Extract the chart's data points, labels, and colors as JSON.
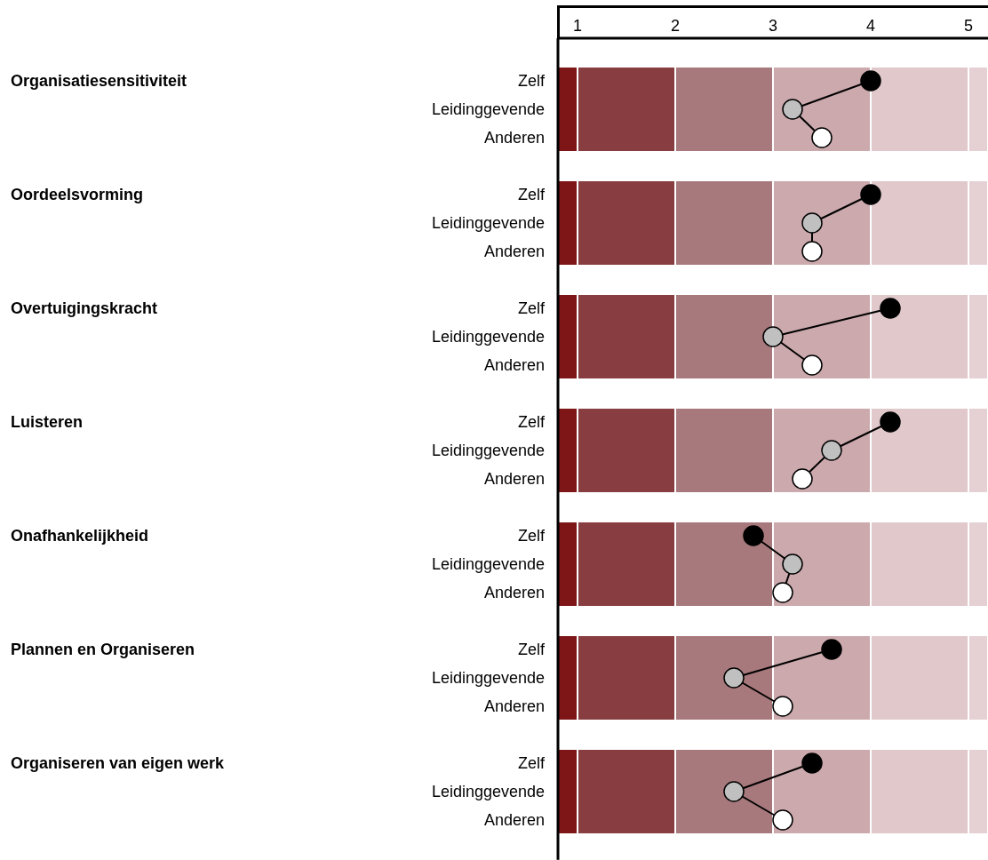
{
  "chart_data": [
    {
      "type": "line",
      "orientation": "horizontal",
      "ylabel": "Organisatiesensitiviteit",
      "categories": [
        "Zelf",
        "Leidinggevende",
        "Anderen"
      ],
      "marker": "circle",
      "xlim": [
        0.8,
        5.2
      ],
      "xticks": [
        1,
        2,
        3,
        4,
        5
      ],
      "series": [
        {
          "color": "#000000",
          "colors": [
            "#000000",
            "#c0c0c0",
            "#ffffff"
          ],
          "values": [
            4.0,
            3.2,
            3.5
          ]
        }
      ],
      "bands": [
        {
          "axis": "x",
          "from": 0.8,
          "to": 1,
          "color": "#7e1618"
        },
        {
          "axis": "x",
          "from": 1,
          "to": 2,
          "color": "#883e40"
        },
        {
          "axis": "x",
          "from": 2,
          "to": 3,
          "color": "#a8797c"
        },
        {
          "axis": "x",
          "from": 3,
          "to": 4,
          "color": "#cca9ad"
        },
        {
          "axis": "x",
          "from": 4,
          "to": 5,
          "color": "#e0c8cb"
        },
        {
          "axis": "x",
          "from": 5,
          "to": 5.2,
          "color": "#e5d0d3"
        }
      ]
    },
    {
      "type": "line",
      "orientation": "horizontal",
      "ylabel": "Oordeelsvorming",
      "categories": [
        "Zelf",
        "Leidinggevende",
        "Anderen"
      ],
      "marker": "circle",
      "xlim": [
        0.8,
        5.2
      ],
      "xticks": [
        1,
        2,
        3,
        4,
        5
      ],
      "tick_labels": "y",
      "series": [
        {
          "color": "#000000",
          "colors": [
            "#000000",
            "#c0c0c0",
            "#ffffff"
          ],
          "values": [
            4.0,
            3.4,
            3.4
          ]
        }
      ],
      "bands": [
        {
          "axis": "x",
          "from": 0.8,
          "to": 1,
          "color": "#7e1618"
        },
        {
          "axis": "x",
          "from": 1,
          "to": 2,
          "color": "#883e40"
        },
        {
          "axis": "x",
          "from": 2,
          "to": 3,
          "color": "#a8797c"
        },
        {
          "axis": "x",
          "from": 3,
          "to": 4,
          "color": "#cca9ad"
        },
        {
          "axis": "x",
          "from": 4,
          "to": 5,
          "color": "#e0c8cb"
        },
        {
          "axis": "x",
          "from": 5,
          "to": 5.2,
          "color": "#e5d0d3"
        }
      ]
    },
    {
      "type": "line",
      "orientation": "horizontal",
      "ylabel": "Overtuigingskracht",
      "categories": [
        "Zelf",
        "Leidinggevende",
        "Anderen"
      ],
      "marker": "circle",
      "xlim": [
        0.8,
        5.2
      ],
      "xticks": [
        1,
        2,
        3,
        4,
        5
      ],
      "tick_labels": "y",
      "series": [
        {
          "color": "#000000",
          "colors": [
            "#000000",
            "#c0c0c0",
            "#ffffff"
          ],
          "values": [
            4.2,
            3.0,
            3.4
          ]
        }
      ],
      "bands": [
        {
          "axis": "x",
          "from": 0.8,
          "to": 1,
          "color": "#7e1618"
        },
        {
          "axis": "x",
          "from": 1,
          "to": 2,
          "color": "#883e40"
        },
        {
          "axis": "x",
          "from": 2,
          "to": 3,
          "color": "#a8797c"
        },
        {
          "axis": "x",
          "from": 3,
          "to": 4,
          "color": "#cca9ad"
        },
        {
          "axis": "x",
          "from": 4,
          "to": 5,
          "color": "#e0c8cb"
        },
        {
          "axis": "x",
          "from": 5,
          "to": 5.2,
          "color": "#e5d0d3"
        }
      ]
    },
    {
      "type": "line",
      "orientation": "horizontal",
      "ylabel": "Luisteren",
      "categories": [
        "Zelf",
        "Leidinggevende",
        "Anderen"
      ],
      "marker": "circle",
      "xlim": [
        0.8,
        5.2
      ],
      "xticks": [
        1,
        2,
        3,
        4,
        5
      ],
      "tick_labels": "y",
      "series": [
        {
          "color": "#000000",
          "colors": [
            "#000000",
            "#c0c0c0",
            "#ffffff"
          ],
          "values": [
            4.2,
            3.6,
            3.3
          ]
        }
      ],
      "bands": [
        {
          "axis": "x",
          "from": 0.8,
          "to": 1,
          "color": "#7e1618"
        },
        {
          "axis": "x",
          "from": 1,
          "to": 2,
          "color": "#883e40"
        },
        {
          "axis": "x",
          "from": 2,
          "to": 3,
          "color": "#a8797c"
        },
        {
          "axis": "x",
          "from": 3,
          "to": 4,
          "color": "#cca9ad"
        },
        {
          "axis": "x",
          "from": 4,
          "to": 5,
          "color": "#e0c8cb"
        },
        {
          "axis": "x",
          "from": 5,
          "to": 5.2,
          "color": "#e5d0d3"
        }
      ]
    },
    {
      "type": "line",
      "orientation": "horizontal",
      "ylabel": "Onafhankelijkheid",
      "categories": [
        "Zelf",
        "Leidinggevende",
        "Anderen"
      ],
      "marker": "circle",
      "xlim": [
        0.8,
        5.2
      ],
      "xticks": [
        1,
        2,
        3,
        4,
        5
      ],
      "tick_labels": "y",
      "series": [
        {
          "color": "#000000",
          "colors": [
            "#000000",
            "#c0c0c0",
            "#ffffff"
          ],
          "values": [
            2.8,
            3.2,
            3.1
          ]
        }
      ],
      "bands": [
        {
          "axis": "x",
          "from": 0.8,
          "to": 1,
          "color": "#7e1618"
        },
        {
          "axis": "x",
          "from": 1,
          "to": 2,
          "color": "#883e40"
        },
        {
          "axis": "x",
          "from": 2,
          "to": 3,
          "color": "#a8797c"
        },
        {
          "axis": "x",
          "from": 3,
          "to": 4,
          "color": "#cca9ad"
        },
        {
          "axis": "x",
          "from": 4,
          "to": 5,
          "color": "#e0c8cb"
        },
        {
          "axis": "x",
          "from": 5,
          "to": 5.2,
          "color": "#e5d0d3"
        }
      ]
    },
    {
      "type": "line",
      "orientation": "horizontal",
      "ylabel": "Plannen en Organiseren",
      "categories": [
        "Zelf",
        "Leidinggevende",
        "Anderen"
      ],
      "marker": "circle",
      "xlim": [
        0.8,
        5.2
      ],
      "xticks": [
        1,
        2,
        3,
        4,
        5
      ],
      "tick_labels": "y",
      "series": [
        {
          "color": "#000000",
          "colors": [
            "#000000",
            "#c0c0c0",
            "#ffffff"
          ],
          "values": [
            3.6,
            2.6,
            3.1
          ]
        }
      ],
      "bands": [
        {
          "axis": "x",
          "from": 0.8,
          "to": 1,
          "color": "#7e1618"
        },
        {
          "axis": "x",
          "from": 1,
          "to": 2,
          "color": "#883e40"
        },
        {
          "axis": "x",
          "from": 2,
          "to": 3,
          "color": "#a8797c"
        },
        {
          "axis": "x",
          "from": 3,
          "to": 4,
          "color": "#cca9ad"
        },
        {
          "axis": "x",
          "from": 4,
          "to": 5,
          "color": "#e0c8cb"
        },
        {
          "axis": "x",
          "from": 5,
          "to": 5.2,
          "color": "#e5d0d3"
        }
      ]
    },
    {
      "type": "line",
      "orientation": "horizontal",
      "ylabel": "Organiseren van eigen werk",
      "categories": [
        "Zelf",
        "Leidinggevende",
        "Anderen"
      ],
      "marker": "circle",
      "xlim": [
        0.8,
        5.2
      ],
      "xticks": [
        1,
        2,
        3,
        4,
        5
      ],
      "tick_labels": "y",
      "series": [
        {
          "color": "#000000",
          "colors": [
            "#000000",
            "#c0c0c0",
            "#ffffff"
          ],
          "values": [
            3.4,
            2.6,
            3.1
          ]
        }
      ],
      "bands": [
        {
          "axis": "x",
          "from": 0.8,
          "to": 1,
          "color": "#7e1618"
        },
        {
          "axis": "x",
          "from": 1,
          "to": 2,
          "color": "#883e40"
        },
        {
          "axis": "x",
          "from": 2,
          "to": 3,
          "color": "#a8797c"
        },
        {
          "axis": "x",
          "from": 3,
          "to": 4,
          "color": "#cca9ad"
        },
        {
          "axis": "x",
          "from": 4,
          "to": 5,
          "color": "#e0c8cb"
        },
        {
          "axis": "x",
          "from": 5,
          "to": 5.2,
          "color": "#e5d0d3"
        }
      ]
    }
  ]
}
